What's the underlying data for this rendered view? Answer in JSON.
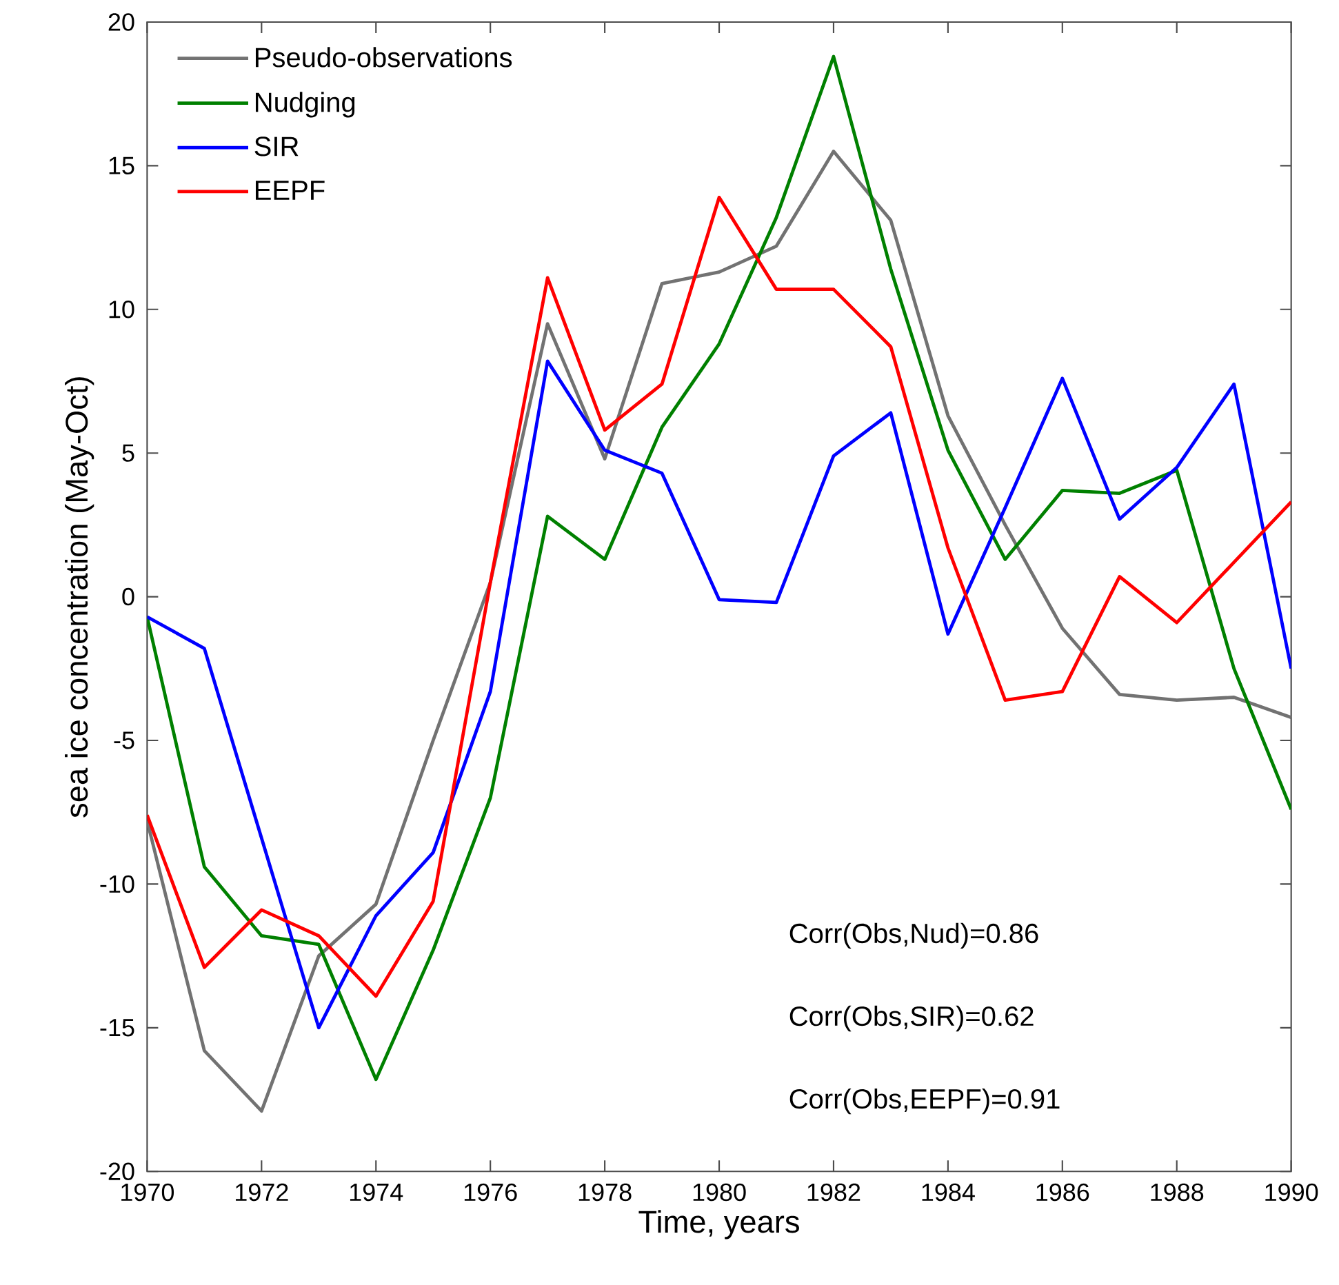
{
  "chart_data": {
    "type": "line",
    "xlabel": "Time, years",
    "ylabel": "sea ice concentration (May-Oct)",
    "x": [
      1970,
      1971,
      1972,
      1973,
      1974,
      1975,
      1976,
      1977,
      1978,
      1979,
      1980,
      1981,
      1982,
      1983,
      1984,
      1985,
      1986,
      1987,
      1988,
      1989,
      1990
    ],
    "series": [
      {
        "name": "Pseudo-observations",
        "color": "#727272",
        "values": [
          -7.8,
          -15.8,
          -17.9,
          -12.5,
          -10.7,
          -5.0,
          0.5,
          9.5,
          4.8,
          10.9,
          11.3,
          12.2,
          15.5,
          13.1,
          6.3,
          2.5,
          -1.1,
          -3.4,
          -3.6,
          -3.5,
          -4.2
        ]
      },
      {
        "name": "Nudging",
        "color": "#008000",
        "values": [
          -0.7,
          -9.4,
          -11.8,
          -12.1,
          -16.8,
          -12.3,
          -7.0,
          2.8,
          1.3,
          5.9,
          8.8,
          13.2,
          18.8,
          11.4,
          5.1,
          1.3,
          3.7,
          3.6,
          4.4,
          -2.5,
          -7.4
        ]
      },
      {
        "name": "SIR",
        "color": "#0000ff",
        "values": [
          -0.7,
          -1.8,
          -8.4,
          -15.0,
          -11.1,
          -8.9,
          -3.3,
          8.2,
          5.1,
          4.3,
          -0.1,
          -0.2,
          4.9,
          6.4,
          -1.3,
          3.1,
          7.6,
          2.7,
          4.5,
          7.4,
          -2.5
        ]
      },
      {
        "name": "EEPF",
        "color": "#ff0000",
        "values": [
          -7.6,
          -12.9,
          -10.9,
          -11.8,
          -13.9,
          -10.6,
          0.5,
          11.1,
          5.8,
          7.4,
          13.9,
          10.7,
          10.7,
          8.7,
          1.7,
          -3.6,
          -3.3,
          0.7,
          -0.9,
          1.2,
          3.3
        ]
      }
    ],
    "xlim": [
      1970,
      1990
    ],
    "xticks": [
      1970,
      1972,
      1974,
      1976,
      1978,
      1980,
      1982,
      1984,
      1986,
      1988,
      1990
    ],
    "ylim": [
      -20,
      20
    ],
    "yticks": [
      -20,
      -15,
      -10,
      -5,
      0,
      5,
      10,
      15,
      20
    ],
    "legend": "top left",
    "marker": "none",
    "line_style": "solid",
    "annotations": [
      "Corr(Obs,Nud)=0.86",
      "Corr(Obs,SIR)=0.62",
      "Corr(Obs,EEPF)=0.91"
    ]
  }
}
